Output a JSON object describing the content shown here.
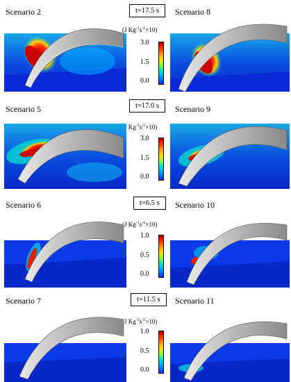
{
  "rows": [
    {
      "left_label": "Scenario 2",
      "right_label": "Scenario 8",
      "time": "t=17.5 s",
      "unit": "(J Kg",
      "ticks": [
        "3.0",
        "1.5",
        "0.0"
      ]
    },
    {
      "left_label": "Scenario 5",
      "right_label": "Scenario 9",
      "time": "t=17.0 s",
      "unit": "(J Kg",
      "ticks": [
        "3.0",
        "1.5",
        "0.0"
      ]
    },
    {
      "left_label": "Scenario 6",
      "right_label": "Scenario 10",
      "time": "t=6.5 s",
      "unit": "(J Kg",
      "ticks": [
        "1.0",
        "0.5",
        "0.0"
      ]
    },
    {
      "left_label": "Scenario 7",
      "right_label": "Scenario 11",
      "time": "t=11.5 s",
      "unit": "(J Kg",
      "ticks": [
        "1.0",
        "0.5",
        "0.0"
      ]
    }
  ],
  "unit_parts": {
    "a": "(J Kg",
    "sup1": "-1",
    "b": "s",
    "sup2": "-1",
    "c": "×10)"
  },
  "colors": {
    "cold": "#0a2ad8",
    "mid": "#00c8ff",
    "hot": "#d80000",
    "shell": "#c8c8c8"
  }
}
